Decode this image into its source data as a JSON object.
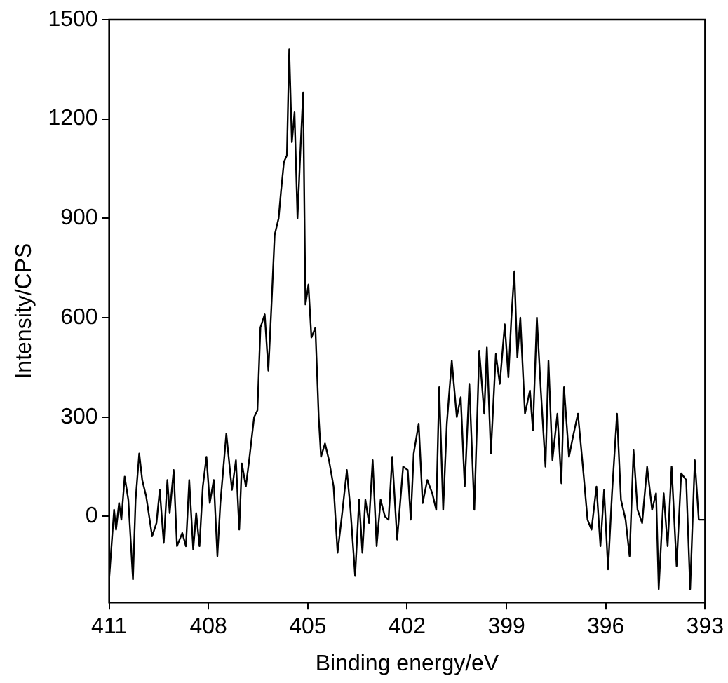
{
  "chart_data": {
    "type": "line",
    "xlabel": "Binding energy/eV",
    "ylabel": "Intensity/CPS",
    "xlim": [
      411,
      393
    ],
    "xticks": [
      411,
      408,
      405,
      402,
      399,
      396,
      393
    ],
    "ylim": [
      -260,
      1500
    ],
    "yticks": [
      0,
      300,
      600,
      900,
      1200,
      1500
    ],
    "grid": false,
    "legend": false,
    "marker": "none",
    "line_style": "solid",
    "series": [
      {
        "color": "#000000",
        "x": [
          411.0,
          410.85,
          410.79,
          410.7,
          410.63,
          410.53,
          410.42,
          410.28,
          410.2,
          410.09,
          410.0,
          409.88,
          409.7,
          409.57,
          409.47,
          409.35,
          409.24,
          409.17,
          409.05,
          408.95,
          408.79,
          408.68,
          408.58,
          408.46,
          408.37,
          408.27,
          408.17,
          408.06,
          407.96,
          407.84,
          407.73,
          407.64,
          407.46,
          407.29,
          407.17,
          407.07,
          406.99,
          406.87,
          406.77,
          406.62,
          406.52,
          406.43,
          406.3,
          406.19,
          406.1,
          406.0,
          405.88,
          405.81,
          405.72,
          405.63,
          405.56,
          405.48,
          405.4,
          405.31,
          405.22,
          405.14,
          405.07,
          404.98,
          404.89,
          404.77,
          404.67,
          404.6,
          404.48,
          404.36,
          404.22,
          404.1,
          403.96,
          403.82,
          403.71,
          403.57,
          403.45,
          403.35,
          403.26,
          403.15,
          403.04,
          402.92,
          402.8,
          402.67,
          402.56,
          402.45,
          402.3,
          402.12,
          401.98,
          401.89,
          401.8,
          401.65,
          401.53,
          401.39,
          401.24,
          401.12,
          401.03,
          400.91,
          400.8,
          400.65,
          400.5,
          400.38,
          400.26,
          400.12,
          399.97,
          399.82,
          399.67,
          399.59,
          399.47,
          399.32,
          399.2,
          399.05,
          398.94,
          398.85,
          398.76,
          398.67,
          398.58,
          398.44,
          398.29,
          398.2,
          398.08,
          397.96,
          397.82,
          397.73,
          397.61,
          397.46,
          397.34,
          397.26,
          397.11,
          396.99,
          396.84,
          396.69,
          396.55,
          396.43,
          396.28,
          396.16,
          396.05,
          395.93,
          395.81,
          395.66,
          395.54,
          395.4,
          395.28,
          395.16,
          395.04,
          394.9,
          394.75,
          394.6,
          394.48,
          394.4,
          394.25,
          394.13,
          394.01,
          393.86,
          393.72,
          393.57,
          393.45,
          393.31,
          393.19,
          393.01
        ],
        "values": [
          -190,
          20,
          -40,
          40,
          -10,
          120,
          50,
          -190,
          50,
          190,
          110,
          60,
          -60,
          -20,
          80,
          -80,
          110,
          10,
          140,
          -90,
          -50,
          -90,
          110,
          -100,
          10,
          -90,
          90,
          180,
          40,
          110,
          -120,
          40,
          250,
          80,
          170,
          -40,
          160,
          90,
          170,
          300,
          320,
          570,
          610,
          440,
          630,
          850,
          900,
          980,
          1070,
          1090,
          1410,
          1130,
          1220,
          900,
          1110,
          1280,
          640,
          700,
          540,
          570,
          300,
          180,
          220,
          170,
          90,
          -110,
          10,
          140,
          20,
          -180,
          50,
          -110,
          50,
          -20,
          170,
          -90,
          50,
          0,
          -10,
          180,
          -70,
          150,
          140,
          -10,
          190,
          280,
          40,
          110,
          70,
          20,
          390,
          20,
          280,
          470,
          300,
          360,
          90,
          400,
          20,
          500,
          310,
          510,
          190,
          490,
          400,
          580,
          420,
          600,
          740,
          480,
          600,
          310,
          380,
          260,
          600,
          380,
          150,
          470,
          170,
          310,
          100,
          390,
          180,
          240,
          310,
          150,
          -10,
          -40,
          90,
          -90,
          80,
          -160,
          70,
          310,
          50,
          -10,
          -120,
          200,
          20,
          -20,
          150,
          20,
          70,
          -220,
          70,
          -90,
          150,
          -150,
          130,
          110,
          -220,
          170,
          -10,
          -10
        ]
      }
    ]
  }
}
